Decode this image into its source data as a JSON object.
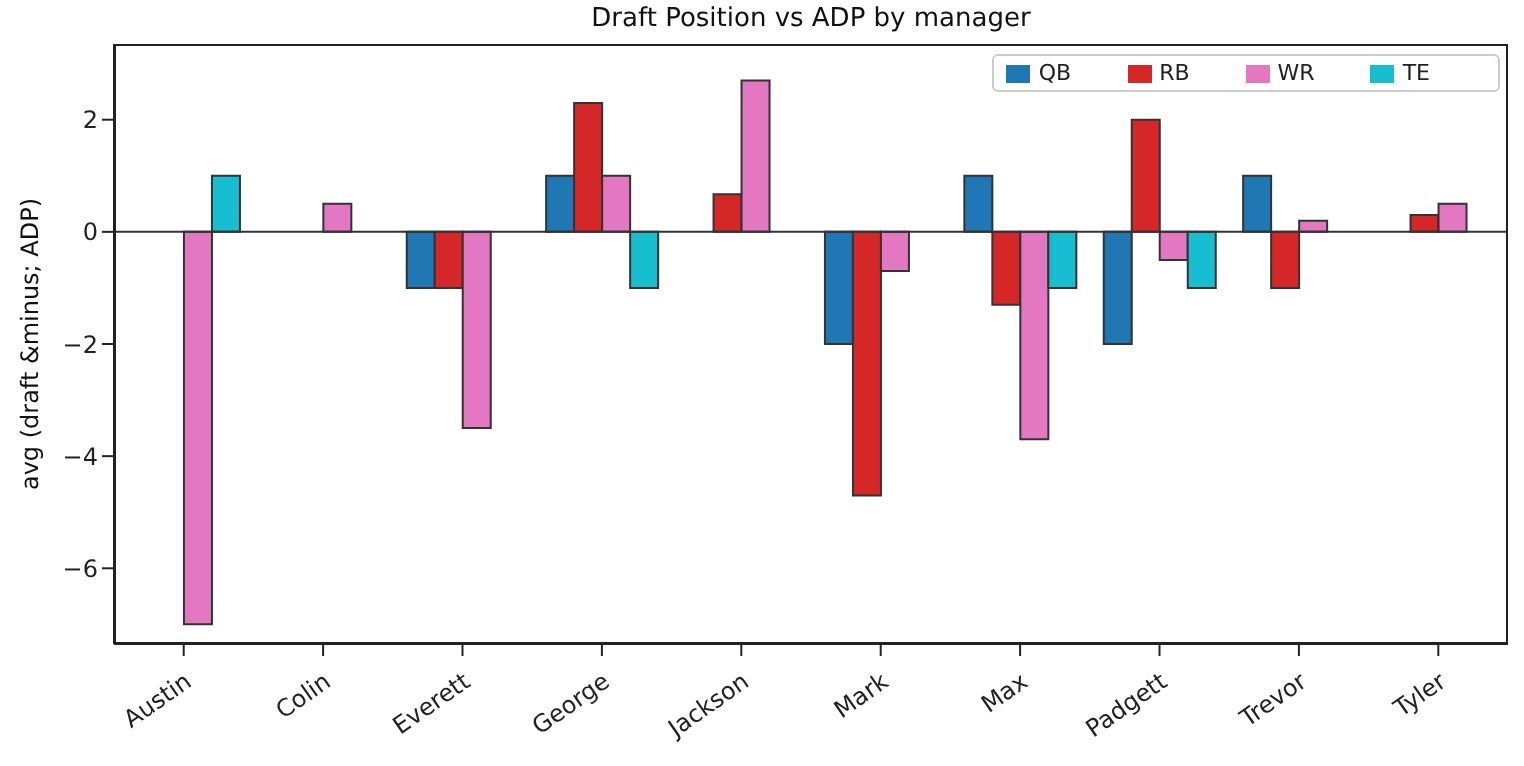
{
  "chart_data": {
    "type": "bar",
    "title": "Draft Position vs ADP by manager",
    "ylabel": "avg (draft &minus; ADP)",
    "categories": [
      "Austin",
      "Colin",
      "Everett",
      "George",
      "Jackson",
      "Mark",
      "Max",
      "Padgett",
      "Trevor",
      "Tyler"
    ],
    "series": [
      {
        "name": "QB",
        "color": "#1f77b4",
        "values": [
          0,
          0,
          -1,
          1,
          0,
          -2,
          1,
          -2,
          1,
          0
        ]
      },
      {
        "name": "RB",
        "color": "#d62728",
        "values": [
          0,
          0,
          -1,
          2.3,
          0.67,
          -4.7,
          -1.3,
          2,
          -1,
          0.3
        ]
      },
      {
        "name": "WR",
        "color": "#e377c2",
        "values": [
          -7,
          0.5,
          -3.5,
          1,
          2.7,
          -0.7,
          -3.7,
          -0.5,
          0.2,
          0.5
        ]
      },
      {
        "name": "TE",
        "color": "#17becf",
        "values": [
          1,
          0,
          0,
          -1,
          0,
          0,
          -1,
          -1,
          0,
          0
        ]
      }
    ],
    "ylim": [
      -7.35,
      3.35
    ],
    "yticks": [
      -6,
      -4,
      -2,
      0,
      2
    ],
    "ref_lines": [
      {
        "axis": "y",
        "value": 0,
        "color": "#333333"
      }
    ],
    "grid": false,
    "legend": "top right"
  }
}
